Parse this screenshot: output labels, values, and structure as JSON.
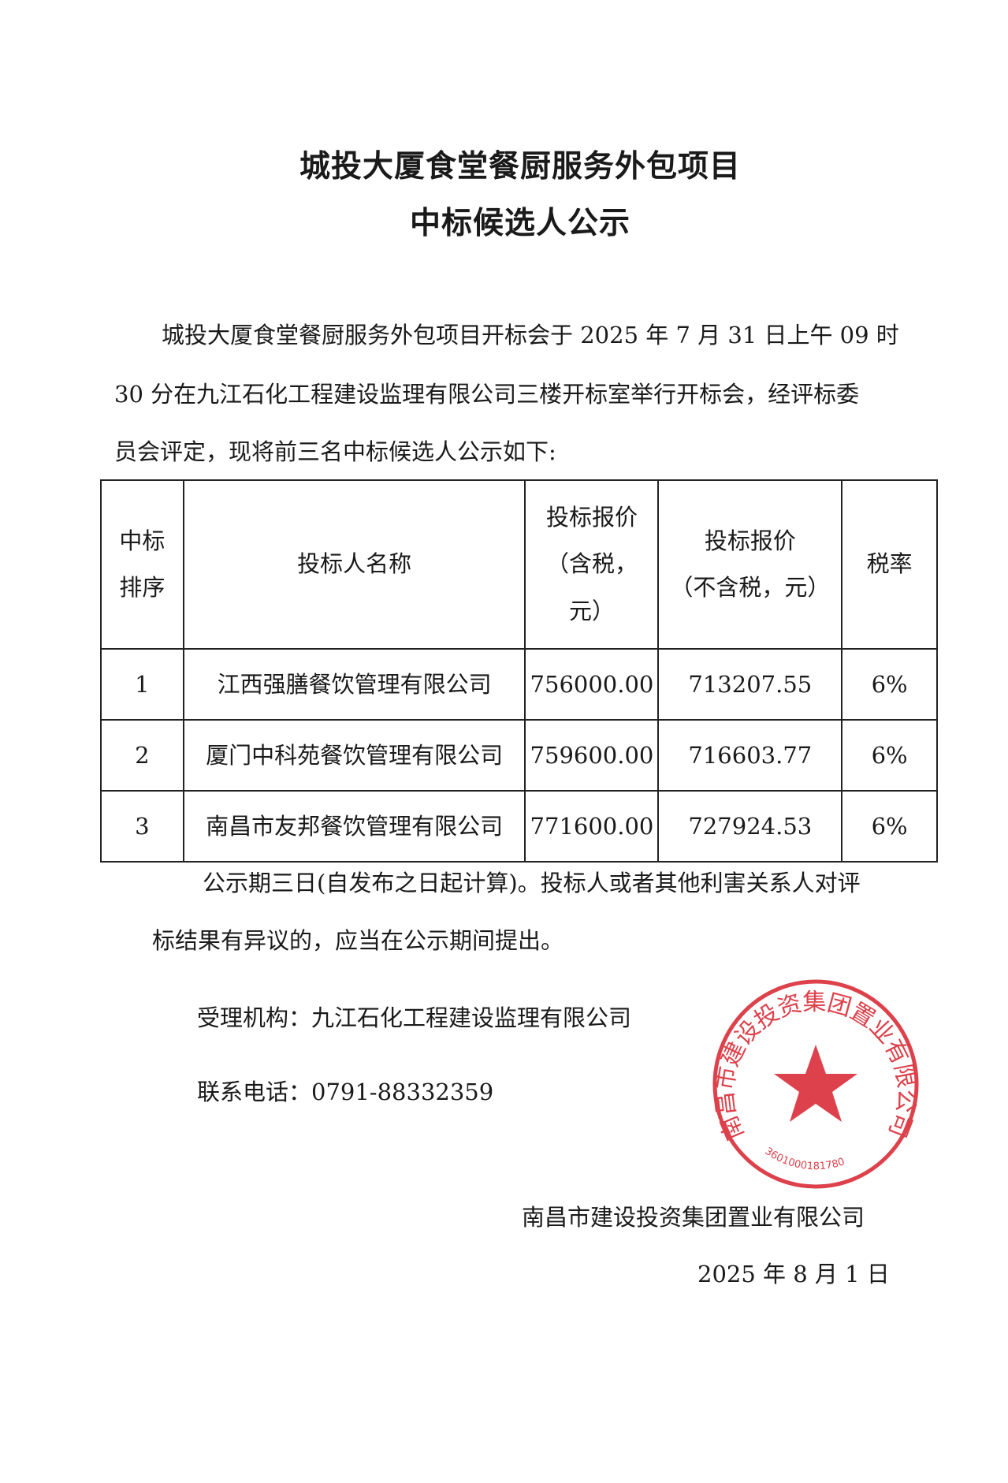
{
  "title": {
    "line1": "城投大厦食堂餐厨服务外包项目",
    "line2": "中标候选人公示"
  },
  "intro": {
    "line1": "城投大厦食堂餐厨服务外包项目开标会于 2025 年 7 月 31 日上午 09 时",
    "line2": "30 分在九江石化工程建设监理有限公司三楼开标室举行开标会，经评标委",
    "line3": "员会评定，现将前三名中标候选人公示如下:"
  },
  "table": {
    "headers": {
      "rank_1": "中标",
      "rank_2": "排序",
      "name": "投标人名称",
      "price_tax_1": "投标报价",
      "price_tax_2": "（含税，",
      "price_tax_3": "元）",
      "price_notax_1": "投标报价",
      "price_notax_2": "（不含税，元）",
      "rate": "税率"
    },
    "rows": [
      {
        "rank": "1",
        "name": "江西强膳餐饮管理有限公司",
        "price_tax": "756000.00",
        "price_notax": "713207.55",
        "rate": "6%"
      },
      {
        "rank": "2",
        "name": "厦门中科苑餐饮管理有限公司",
        "price_tax": "759600.00",
        "price_notax": "716603.77",
        "rate": "6%"
      },
      {
        "rank": "3",
        "name": "南昌市友邦餐饮管理有限公司",
        "price_tax": "771600.00",
        "price_notax": "727924.53",
        "rate": "6%"
      }
    ]
  },
  "notice": {
    "line1": "公示期三日(自发布之日起计算)。投标人或者其他利害关系人对评",
    "line2": "标结果有异议的，应当在公示期间提出。"
  },
  "agency": "受理机构：九江石化工程建设监理有限公司",
  "phone": "联系电话：0791-88332359",
  "signature": {
    "company": "南昌市建设投资集团置业有限公司",
    "date": "2025 年 8 月  1 日"
  },
  "stamp": {
    "text": "南昌市建设投资集团置业有限公司",
    "code": "3601000181780",
    "color": "#d8202c"
  }
}
